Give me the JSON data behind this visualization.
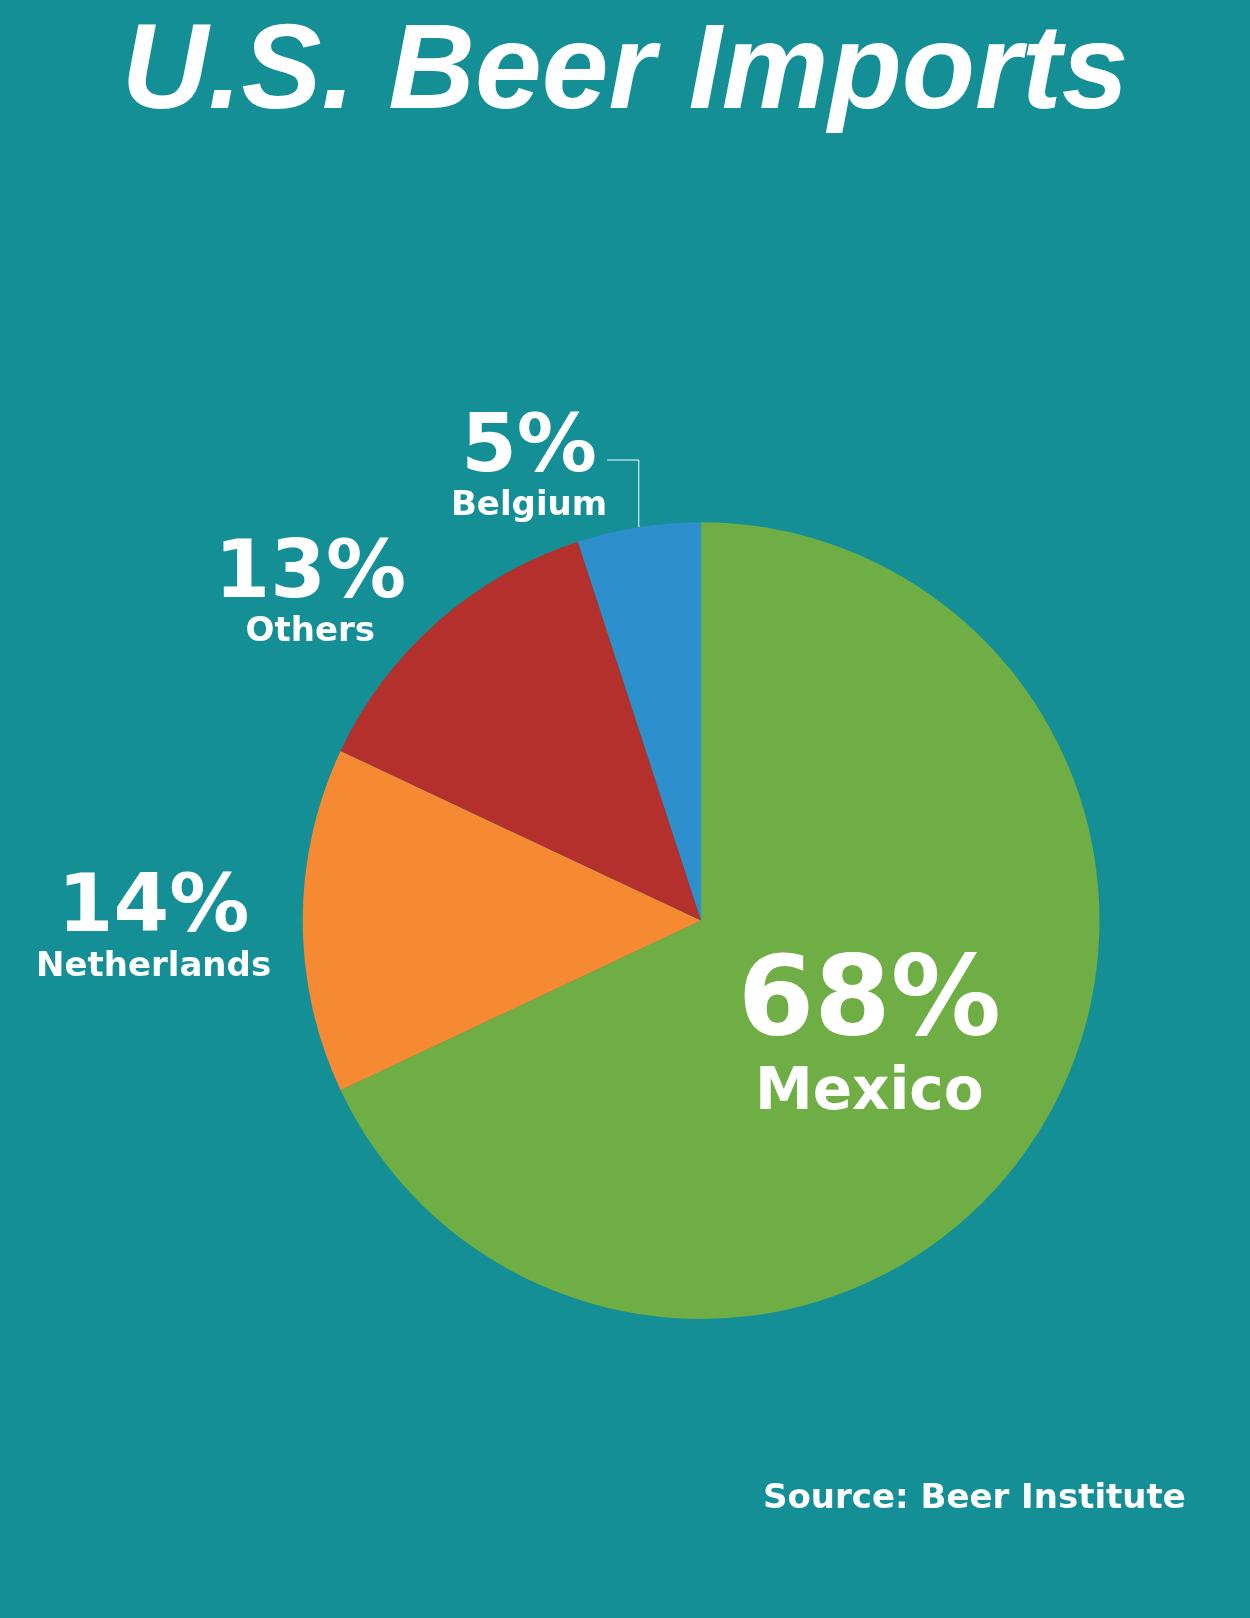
{
  "chart_data": {
    "type": "pie",
    "title": "U.S. Beer Imports",
    "categories": [
      "Mexico",
      "Netherlands",
      "Others",
      "Belgium"
    ],
    "values": [
      68,
      14,
      13,
      5
    ],
    "value_labels": [
      "68%",
      "14%",
      "13%",
      "5%"
    ],
    "colors": [
      "#6fae45",
      "#f58a32",
      "#b3302c",
      "#2d8fcc"
    ],
    "legend": false,
    "annotations": [
      "Source: Beer Institute"
    ]
  }
}
